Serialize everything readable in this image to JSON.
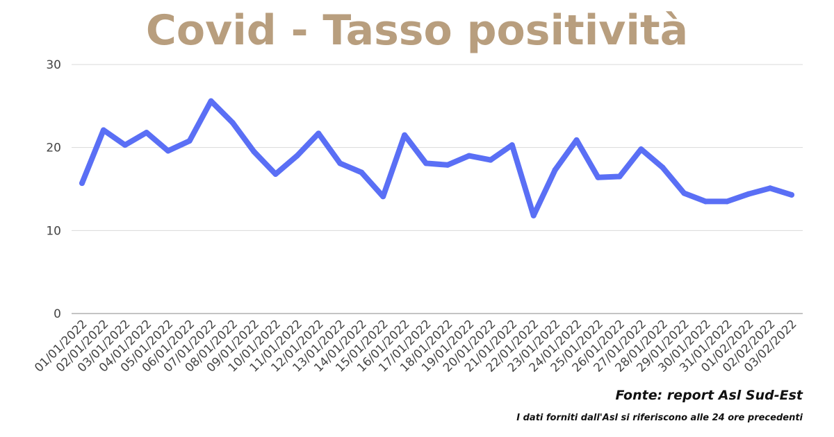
{
  "chart_data": {
    "type": "line",
    "title": "Covid - Tasso positività",
    "xlabel": "",
    "ylabel": "",
    "ylim": [
      0,
      30
    ],
    "yticks": [
      "0",
      "10",
      "20",
      "30"
    ],
    "grid": true,
    "legend": "none",
    "categories": [
      "01/01/2022",
      "02/01/2022",
      "03/01/2022",
      "04/01/2022",
      "05/01/2022",
      "06/01/2022",
      "07/01/2022",
      "08/01/2022",
      "09/01/2022",
      "10/01/2022",
      "11/01/2022",
      "12/01/2022",
      "13/01/2022",
      "14/01/2022",
      "15/01/2022",
      "16/01/2022",
      "17/01/2022",
      "18/01/2022",
      "19/01/2022",
      "20/01/2022",
      "21/01/2022",
      "22/01/2022",
      "23/01/2022",
      "24/01/2022",
      "25/01/2022",
      "26/01/2022",
      "27/01/2022",
      "28/01/2022",
      "29/01/2022",
      "30/01/2022",
      "31/01/2022",
      "01/02/2022",
      "02/02/2022",
      "03/02/2022"
    ],
    "series": [
      {
        "values": [
          15.7,
          22.1,
          20.3,
          21.8,
          19.6,
          20.8,
          25.6,
          23.0,
          19.5,
          16.8,
          19.0,
          21.7,
          18.1,
          17.0,
          14.1,
          21.5,
          18.1,
          17.9,
          19.0,
          18.5,
          20.3,
          11.8,
          17.3,
          20.9,
          16.4,
          16.5,
          19.8,
          17.6,
          14.5,
          13.5,
          13.5,
          14.4,
          15.1,
          14.3
        ],
        "color": "#5a6ff5"
      }
    ],
    "source": "Fonte: report Asl Sud-Est",
    "note": "I dati forniti dall'Asl si riferiscono alle 24 ore precedenti"
  },
  "colors": {
    "title": "#b89e7e",
    "line": "#5a6ff5",
    "grid": "#d9d9d9",
    "axis": "#8a8a8a"
  }
}
